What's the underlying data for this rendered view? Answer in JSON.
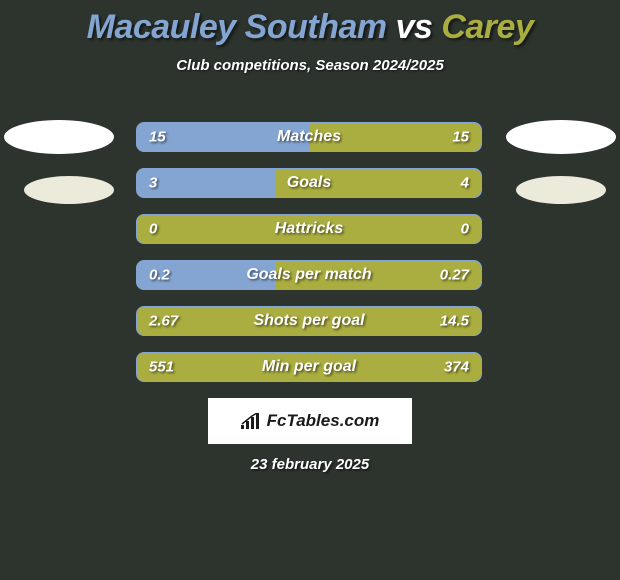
{
  "colors": {
    "background": "#2d342e",
    "player1": "#84a5d2",
    "player2": "#aaad3f",
    "white": "#ffffff",
    "oval": "#eceadb",
    "watermark_bg": "#ffffff",
    "watermark_text": "#1a1a1a"
  },
  "title": {
    "player1": "Macauley Southam",
    "vs": "vs",
    "player2": "Carey"
  },
  "subtitle": "Club competitions, Season 2024/2025",
  "bars": [
    {
      "label": "Matches",
      "left_val": "15",
      "right_val": "15",
      "left_pct": 50,
      "right_pct": 50
    },
    {
      "label": "Goals",
      "left_val": "3",
      "right_val": "4",
      "left_pct": 40,
      "right_pct": 60
    },
    {
      "label": "Hattricks",
      "left_val": "0",
      "right_val": "0",
      "left_pct": 0,
      "right_pct": 0
    },
    {
      "label": "Goals per match",
      "left_val": "0.2",
      "right_val": "0.27",
      "left_pct": 40,
      "right_pct": 60
    },
    {
      "label": "Shots per goal",
      "left_val": "2.67",
      "right_val": "14.5",
      "left_pct": 0,
      "right_pct": 0
    },
    {
      "label": "Min per goal",
      "left_val": "551",
      "right_val": "374",
      "left_pct": 0,
      "right_pct": 0
    }
  ],
  "watermark": "FcTables.com",
  "date": "23 february 2025"
}
